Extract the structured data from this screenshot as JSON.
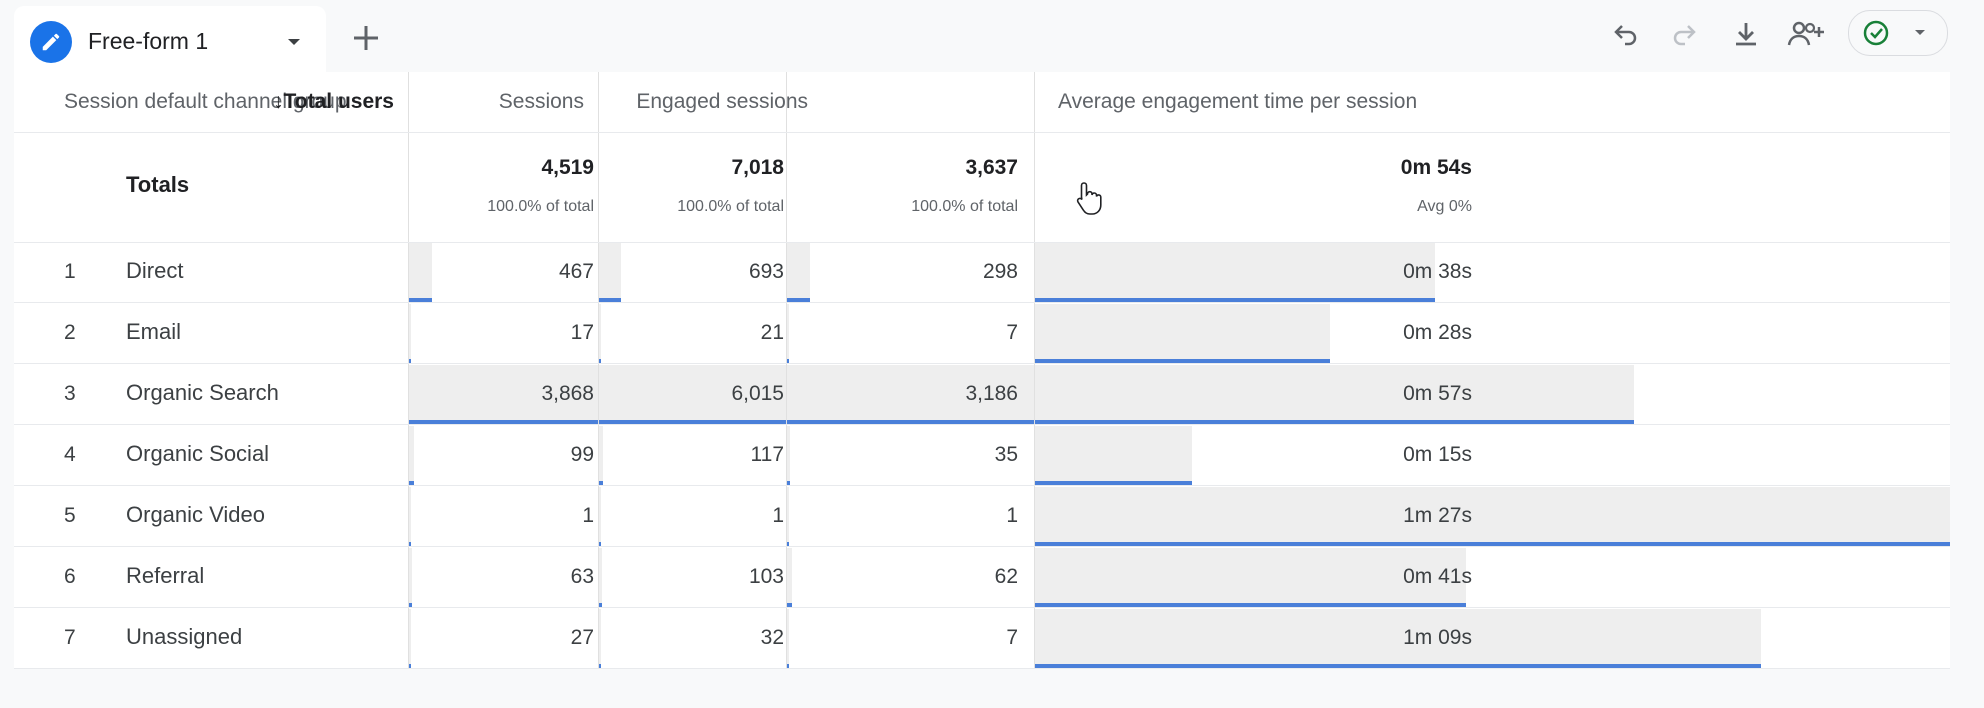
{
  "tab": {
    "label": "Free-form 1",
    "icon": "pencil-icon"
  },
  "toolbar": {
    "icons": [
      "undo-icon",
      "redo-icon",
      "download-icon",
      "share-users-icon",
      "status-check-icon",
      "caret-down-icon"
    ]
  },
  "colors": {
    "accent": "#1a73e8",
    "bar_line": "#4a7fd9",
    "bar_fill": "#eeeeee",
    "status_green": "#188038"
  },
  "table": {
    "dimension_header": "Session default channel group",
    "sort_arrow": "↓",
    "columns": [
      {
        "key": "users",
        "label": "Total users",
        "sorted": true
      },
      {
        "key": "sessions",
        "label": "Sessions"
      },
      {
        "key": "engaged",
        "label": "Engaged sessions"
      },
      {
        "key": "avgtime",
        "label": "Average engagement time per session"
      }
    ],
    "totals": {
      "label": "Totals",
      "users": "4,519",
      "users_sub": "100.0% of total",
      "sessions": "7,018",
      "sessions_sub": "100.0% of total",
      "engaged": "3,637",
      "engaged_sub": "100.0% of total",
      "avgtime": "0m 54s",
      "avgtime_sub": "Avg 0%"
    },
    "rows": [
      {
        "idx": "1",
        "name": "Direct",
        "users": "467",
        "sessions": "693",
        "engaged": "298",
        "avgtime": "0m 38s",
        "users_frac": 0.121,
        "sessions_frac": 0.115,
        "engaged_frac": 0.094,
        "avgtime_frac": 0.437
      },
      {
        "idx": "2",
        "name": "Email",
        "users": "17",
        "sessions": "21",
        "engaged": "7",
        "avgtime": "0m 28s",
        "users_frac": 0.004,
        "sessions_frac": 0.003,
        "engaged_frac": 0.002,
        "avgtime_frac": 0.322
      },
      {
        "idx": "3",
        "name": "Organic Search",
        "users": "3,868",
        "sessions": "6,015",
        "engaged": "3,186",
        "avgtime": "0m 57s",
        "users_frac": 1.0,
        "sessions_frac": 1.0,
        "engaged_frac": 1.0,
        "avgtime_frac": 0.655
      },
      {
        "idx": "4",
        "name": "Organic Social",
        "users": "99",
        "sessions": "117",
        "engaged": "35",
        "avgtime": "0m 15s",
        "users_frac": 0.026,
        "sessions_frac": 0.019,
        "engaged_frac": 0.011,
        "avgtime_frac": 0.172
      },
      {
        "idx": "5",
        "name": "Organic Video",
        "users": "1",
        "sessions": "1",
        "engaged": "1",
        "avgtime": "1m 27s",
        "users_frac": 0.0003,
        "sessions_frac": 0.0002,
        "engaged_frac": 0.0003,
        "avgtime_frac": 1.0
      },
      {
        "idx": "6",
        "name": "Referral",
        "users": "63",
        "sessions": "103",
        "engaged": "62",
        "avgtime": "0m 41s",
        "users_frac": 0.016,
        "sessions_frac": 0.017,
        "engaged_frac": 0.019,
        "avgtime_frac": 0.471
      },
      {
        "idx": "7",
        "name": "Unassigned",
        "users": "27",
        "sessions": "32",
        "engaged": "7",
        "avgtime": "1m 09s",
        "users_frac": 0.007,
        "sessions_frac": 0.005,
        "engaged_frac": 0.002,
        "avgtime_frac": 0.793
      }
    ]
  }
}
